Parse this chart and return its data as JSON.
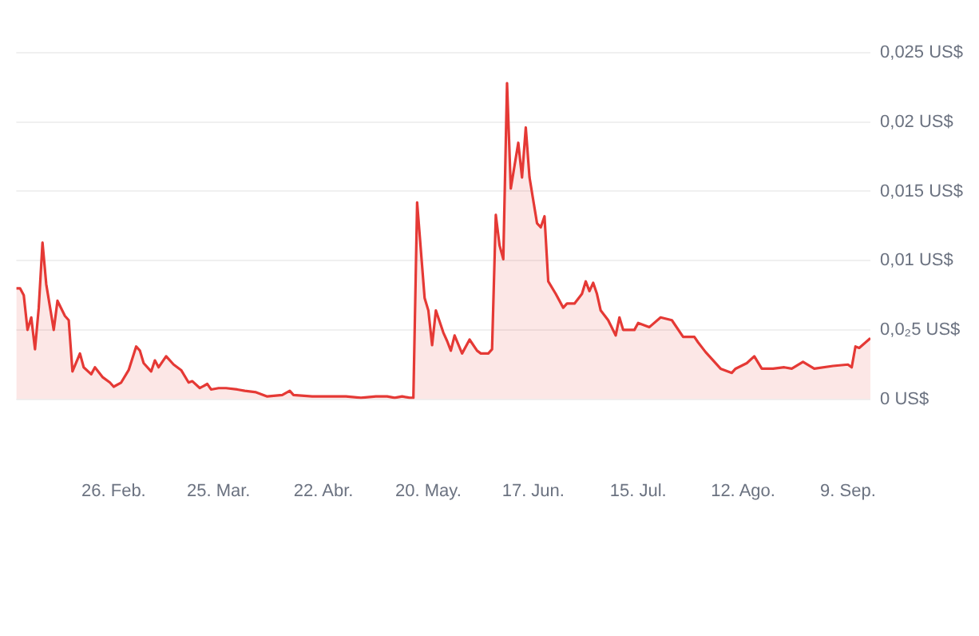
{
  "chart_data": {
    "type": "area",
    "color": "#e53935",
    "x": [
      "--01-31",
      "--02-01",
      "--02-02",
      "--02-03",
      "--02-04",
      "--02-05",
      "--02-06",
      "--02-07",
      "--02-08",
      "--02-10",
      "--02-11",
      "--02-13",
      "--02-14",
      "--02-15",
      "--02-17",
      "--02-18",
      "--02-20",
      "--02-21",
      "--02-23",
      "--02-25",
      "--02-26",
      "--02-28",
      "--03-01",
      "--03-03",
      "--03-04",
      "--03-05",
      "--03-07",
      "--03-08",
      "--03-09",
      "--03-11",
      "--03-13",
      "--03-15",
      "--03-17",
      "--03-18",
      "--03-20",
      "--03-22",
      "--03-23",
      "--03-25",
      "--03-27",
      "--03-30",
      "--04-01",
      "--04-04",
      "--04-07",
      "--04-11",
      "--04-13",
      "--04-14",
      "--04-19",
      "--04-24",
      "--04-28",
      "--05-02",
      "--05-06",
      "--05-09",
      "--05-11",
      "--05-13",
      "--05-15",
      "--05-16",
      "--05-17",
      "--05-19",
      "--05-20",
      "--05-21",
      "--05-22",
      "--05-24",
      "--05-25",
      "--05-26",
      "--05-27",
      "--05-29",
      "--05-31",
      "--06-02",
      "--06-03",
      "--06-05",
      "--06-06",
      "--06-07",
      "--06-08",
      "--06-09",
      "--06-10",
      "--06-11",
      "--06-13",
      "--06-14",
      "--06-15",
      "--06-16",
      "--06-18",
      "--06-19",
      "--06-20",
      "--06-21",
      "--06-23",
      "--06-25",
      "--06-26",
      "--06-28",
      "--06-30",
      "--07-01",
      "--07-02",
      "--07-03",
      "--07-04",
      "--07-05",
      "--07-07",
      "--07-09",
      "--07-10",
      "--07-11",
      "--07-14",
      "--07-15",
      "--07-18",
      "--07-21",
      "--07-24",
      "--07-27",
      "--07-30",
      "--07-31",
      "--08-02",
      "--08-06",
      "--08-09",
      "--08-10",
      "--08-13",
      "--08-15",
      "--08-17",
      "--08-20",
      "--08-23",
      "--08-25",
      "--08-28",
      "--08-31",
      "--09-05",
      "--09-09",
      "--09-10",
      "--09-11",
      "--09-12",
      "--09-15"
    ],
    "values": [
      0.008,
      0.008,
      0.0075,
      0.005,
      0.0059,
      0.0036,
      0.0066,
      0.0113,
      0.0083,
      0.005,
      0.0071,
      0.006,
      0.0057,
      0.002,
      0.0033,
      0.0023,
      0.0018,
      0.0023,
      0.0016,
      0.0012,
      0.0009,
      0.0012,
      0.0021,
      0.0038,
      0.0035,
      0.0026,
      0.002,
      0.0028,
      0.0023,
      0.0031,
      0.0025,
      0.0021,
      0.0012,
      0.0013,
      0.0008,
      0.0011,
      0.0007,
      0.0008,
      0.0008,
      0.0007,
      0.0006,
      0.0005,
      0.0002,
      0.0003,
      0.0006,
      0.0003,
      0.0002,
      0.0002,
      0.0002,
      0.0001,
      0.0002,
      0.0002,
      0.0001,
      0.0002,
      0.0001,
      0.0001,
      0.0142,
      0.0073,
      0.0064,
      0.0039,
      0.0064,
      0.0048,
      0.0042,
      0.0035,
      0.0046,
      0.0033,
      0.0043,
      0.0035,
      0.0033,
      0.0033,
      0.0036,
      0.0133,
      0.0111,
      0.0101,
      0.0228,
      0.0152,
      0.0185,
      0.016,
      0.0196,
      0.016,
      0.0127,
      0.0124,
      0.0132,
      0.0085,
      0.0076,
      0.0066,
      0.0069,
      0.0069,
      0.0076,
      0.0085,
      0.0078,
      0.0084,
      0.0076,
      0.0064,
      0.0057,
      0.0046,
      0.0059,
      0.005,
      0.005,
      0.0055,
      0.0052,
      0.0059,
      0.0057,
      0.0045,
      0.0045,
      0.0041,
      0.0034,
      0.0022,
      0.0019,
      0.0022,
      0.0026,
      0.0031,
      0.0022,
      0.0022,
      0.0023,
      0.0022,
      0.0027,
      0.0022,
      0.0024,
      0.0025,
      0.0023,
      0.0038,
      0.0037,
      0.0044
    ],
    "xlim": [
      "--01-31",
      "--09-15"
    ],
    "xticks": [
      {
        "value": "--02-26",
        "label": "26. Feb."
      },
      {
        "value": "--03-25",
        "label": "25. Mar."
      },
      {
        "value": "--04-22",
        "label": "22. Abr."
      },
      {
        "value": "--05-20",
        "label": "20. May."
      },
      {
        "value": "--06-17",
        "label": "17. Jun."
      },
      {
        "value": "--07-15",
        "label": "15. Jul."
      },
      {
        "value": "--08-12",
        "label": "12. Ago."
      },
      {
        "value": "--09-09",
        "label": "9. Sep."
      }
    ],
    "ylim": [
      0,
      0.025
    ],
    "yticks": [
      {
        "value": 0,
        "label": "0 US$"
      },
      {
        "value": 0.005,
        "label": "0,0₂5 US$"
      },
      {
        "value": 0.01,
        "label": "0,01 US$"
      },
      {
        "value": 0.015,
        "label": "0,015 US$"
      },
      {
        "value": 0.02,
        "label": "0,02 US$"
      },
      {
        "value": 0.025,
        "label": "0,025 US$"
      }
    ],
    "grid": "y"
  }
}
